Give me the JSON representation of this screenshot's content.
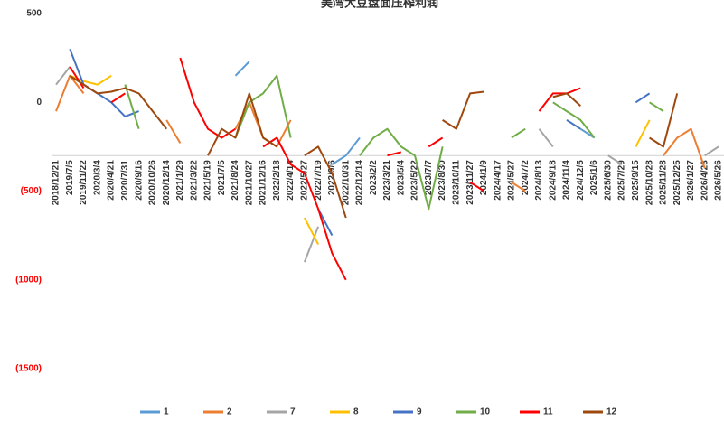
{
  "chart_data": {
    "type": "line",
    "title": "美湾大豆盘面压榨利润",
    "categories": [
      "2018/12/21",
      "2019/7/5",
      "2019/11/22",
      "2020/3/4",
      "2020/4/21",
      "2020/7/31",
      "2020/9/16",
      "2020/10/26",
      "2020/12/14",
      "2021/1/29",
      "2021/3/22",
      "2021/5/19",
      "2021/7/5",
      "2021/8/24",
      "2021/10/27",
      "2021/12/16",
      "2022/2/18",
      "2022/4/14",
      "2022/5/27",
      "2022/7/19",
      "2022/9/6",
      "2022/10/31",
      "2022/12/14",
      "2023/2/2",
      "2023/3/21",
      "2023/5/4",
      "2023/5/22",
      "2023/7/7",
      "2023/8/30",
      "2023/10/11",
      "2023/11/27",
      "2024/1/9",
      "2024/4/17",
      "2024/5/27",
      "2024/7/2",
      "2024/8/13",
      "2024/9/18",
      "2024/11/4",
      "2024/12/5",
      "2025/1/6",
      "2025/6/30",
      "2025/7/29",
      "2025/9/15",
      "2025/10/28",
      "2025/11/28",
      "2025/12/25",
      "2026/1/27",
      "2026/4/23",
      "2026/5/26"
    ],
    "series": [
      {
        "name": "1",
        "color": "#5b9bd5",
        "values": [
          null,
          null,
          null,
          null,
          null,
          null,
          null,
          null,
          null,
          null,
          null,
          null,
          null,
          150,
          230,
          null,
          null,
          null,
          null,
          null,
          -350,
          -300,
          -200,
          null,
          null,
          null,
          null,
          null,
          null,
          null,
          null,
          null,
          null,
          null,
          null,
          null,
          null,
          null,
          -150,
          -200,
          null,
          null,
          null,
          null,
          null,
          null,
          null,
          null,
          null
        ]
      },
      {
        "name": "2",
        "color": "#ed7d31",
        "values": [
          -50,
          150,
          50,
          null,
          null,
          null,
          null,
          null,
          -100,
          -230,
          null,
          null,
          null,
          -150,
          0,
          -200,
          -250,
          -100,
          null,
          null,
          null,
          null,
          null,
          null,
          null,
          null,
          null,
          null,
          null,
          null,
          null,
          null,
          null,
          -450,
          -500,
          null,
          null,
          null,
          null,
          null,
          null,
          null,
          null,
          null,
          -300,
          -200,
          -150,
          -370,
          null
        ]
      },
      {
        "name": "7",
        "color": "#a5a5a5",
        "values": [
          100,
          200,
          null,
          null,
          null,
          null,
          null,
          null,
          null,
          null,
          null,
          null,
          null,
          null,
          null,
          null,
          null,
          null,
          -900,
          -700,
          null,
          null,
          null,
          null,
          null,
          null,
          null,
          null,
          null,
          null,
          null,
          null,
          null,
          null,
          null,
          -150,
          -250,
          null,
          null,
          null,
          -300,
          -350,
          null,
          null,
          null,
          null,
          null,
          -300,
          -250
        ]
      },
      {
        "name": "8",
        "color": "#ffc000",
        "values": [
          null,
          150,
          120,
          100,
          150,
          null,
          null,
          null,
          null,
          null,
          null,
          null,
          null,
          null,
          null,
          null,
          null,
          null,
          -650,
          -800,
          null,
          null,
          null,
          null,
          null,
          null,
          null,
          null,
          null,
          null,
          null,
          null,
          null,
          null,
          null,
          null,
          null,
          null,
          null,
          null,
          null,
          null,
          -250,
          -100,
          null,
          null,
          null,
          null,
          null
        ]
      },
      {
        "name": "9",
        "color": "#4472c4",
        "values": [
          null,
          300,
          100,
          50,
          0,
          -80,
          -50,
          null,
          null,
          null,
          null,
          null,
          null,
          null,
          null,
          null,
          null,
          null,
          null,
          -600,
          -750,
          null,
          null,
          null,
          null,
          null,
          null,
          null,
          null,
          null,
          null,
          null,
          null,
          null,
          null,
          null,
          null,
          -100,
          -150,
          null,
          null,
          null,
          0,
          50,
          null,
          null,
          null,
          null,
          null
        ]
      },
      {
        "name": "10",
        "color": "#70ad47",
        "values": [
          null,
          null,
          null,
          null,
          null,
          100,
          -150,
          null,
          null,
          null,
          null,
          null,
          null,
          -200,
          0,
          50,
          150,
          -200,
          null,
          null,
          null,
          null,
          -300,
          -200,
          -150,
          -250,
          -300,
          -600,
          -250,
          null,
          null,
          null,
          null,
          -200,
          -150,
          null,
          0,
          -50,
          -100,
          -200,
          null,
          null,
          null,
          0,
          -50,
          null,
          null,
          null,
          null
        ]
      },
      {
        "name": "11",
        "color": "#ff0000",
        "values": [
          null,
          200,
          80,
          null,
          0,
          50,
          null,
          null,
          null,
          250,
          0,
          -150,
          -200,
          -150,
          null,
          -250,
          -200,
          -350,
          -400,
          -600,
          -850,
          -1000,
          null,
          null,
          -300,
          -280,
          null,
          -250,
          -200,
          null,
          -450,
          -500,
          null,
          null,
          null,
          -50,
          50,
          50,
          80,
          null,
          null,
          null,
          null,
          null,
          null,
          null,
          null,
          null,
          null
        ]
      },
      {
        "name": "12",
        "color": "#9e480e",
        "values": [
          null,
          150,
          100,
          50,
          60,
          80,
          50,
          -50,
          -150,
          null,
          null,
          -300,
          -150,
          -200,
          50,
          -200,
          -250,
          null,
          -300,
          -250,
          -400,
          -650,
          null,
          null,
          null,
          null,
          null,
          null,
          -100,
          -150,
          50,
          60,
          null,
          null,
          null,
          null,
          30,
          50,
          -20,
          null,
          null,
          null,
          null,
          -200,
          -250,
          50,
          null,
          null,
          null
        ]
      }
    ],
    "ylim": [
      -1500,
      500
    ],
    "yticks": [
      500,
      0,
      {
        "value": -500,
        "label": "(500)"
      },
      {
        "value": -1000,
        "label": "(1000)"
      },
      {
        "value": -1500,
        "label": "(1500)"
      }
    ],
    "x_axis_crosses": -300,
    "negative_tick_color": "#ff0000"
  }
}
